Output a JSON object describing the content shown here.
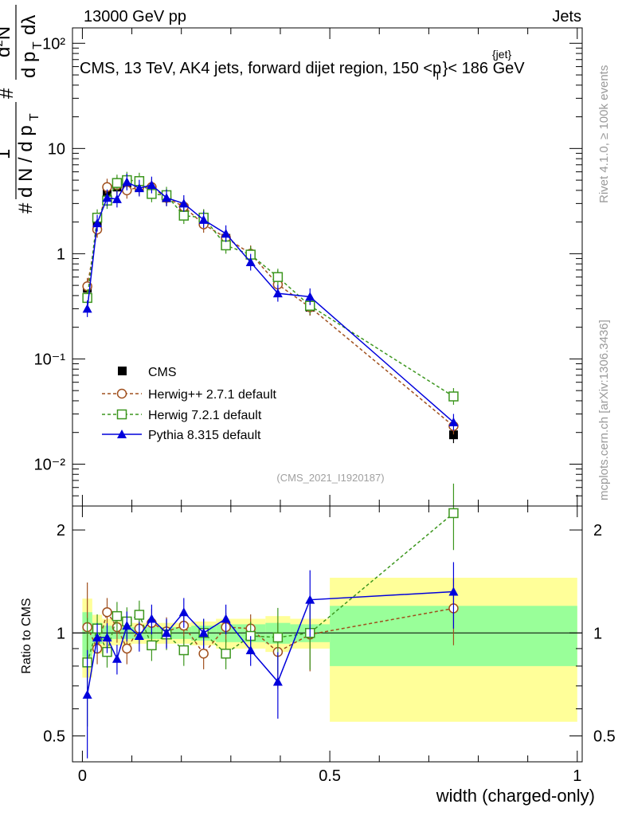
{
  "header": {
    "energy_label": "13000 GeV pp",
    "category_label": "Jets",
    "title": "CMS, 13 TeV, AK4 jets, forward dijet region, 150 <p",
    "title_sup": "{jet}",
    "title_sub": "T",
    "title_end": "}< 186 GeV",
    "analysis_id": "(CMS_2021_I1920187)"
  },
  "side_labels": {
    "rivet": "Rivet 4.1.0, ≥ 100k events",
    "mcplots": "mcplots.cern.ch [arXiv:1306.3436]"
  },
  "chart_data": {
    "type": "line",
    "x": [
      0.01,
      0.03,
      0.05,
      0.07,
      0.09,
      0.115,
      0.14,
      0.17,
      0.205,
      0.245,
      0.29,
      0.34,
      0.395,
      0.46,
      0.75
    ],
    "x_bin_edges": [
      0.0,
      0.02,
      0.04,
      0.06,
      0.08,
      0.1,
      0.13,
      0.15,
      0.19,
      0.22,
      0.27,
      0.31,
      0.37,
      0.42,
      0.5,
      1.0
    ],
    "xlabel": "width (charged-only)",
    "ylabel_main": "# 1/(d N / d p_T #) d^2N / (d p_T dλ)",
    "ylabel_ratio": "Ratio to CMS",
    "xlim": [
      -0.02,
      1.01
    ],
    "ylim_main": [
      0.004,
      140
    ],
    "ylim_ratio": [
      0.42,
      2.35
    ],
    "x_ticks": [
      "0",
      "0.5",
      "1"
    ],
    "y_ticks_main": [
      "10⁻²",
      "10⁻¹",
      "1",
      "10",
      "10²"
    ],
    "y_ticks_ratio": [
      "0.5",
      "1",
      "2"
    ],
    "legend_position": "middle-left",
    "series": [
      {
        "name": "CMS",
        "style": "data",
        "color": "#000000",
        "values": [
          0.47,
          2.0,
          3.7,
          4.3,
          4.7,
          4.3,
          4.1,
          3.4,
          2.7,
          2.2,
          1.4,
          0.98,
          0.58,
          0.31,
          0.019
        ]
      },
      {
        "name": "Herwig++ 2.7.1 default",
        "style": "dashed-circle",
        "color": "#a0501e",
        "values": [
          0.49,
          1.7,
          4.3,
          4.5,
          4.0,
          4.3,
          4.3,
          3.4,
          2.8,
          1.9,
          1.42,
          1.0,
          0.51,
          0.31,
          0.023
        ],
        "ratio": [
          1.04,
          0.9,
          1.15,
          1.04,
          0.9,
          1.03,
          1.07,
          1.01,
          1.05,
          0.87,
          1.04,
          1.03,
          0.88,
          0.99,
          1.18
        ]
      },
      {
        "name": "Herwig 7.2.1 default",
        "style": "dashed-square",
        "color": "#3c961e",
        "values": [
          0.38,
          2.2,
          3.2,
          4.7,
          5.0,
          4.9,
          3.7,
          3.6,
          2.3,
          2.2,
          1.2,
          0.98,
          0.6,
          0.32,
          0.044
        ],
        "ratio": [
          0.82,
          1.03,
          0.88,
          1.12,
          1.08,
          1.13,
          0.92,
          0.99,
          0.89,
          1.0,
          0.87,
          0.98,
          0.97,
          1.0,
          2.24
        ]
      },
      {
        "name": "Pythia 8.315 default",
        "style": "solid-triangle",
        "color": "#0000dc",
        "values": [
          0.3,
          1.95,
          3.4,
          3.3,
          4.8,
          4.2,
          4.5,
          3.4,
          3.0,
          2.1,
          1.55,
          0.83,
          0.42,
          0.39,
          0.025
        ],
        "ratio": [
          0.66,
          0.97,
          0.97,
          0.84,
          1.05,
          0.98,
          1.1,
          1.0,
          1.15,
          1.0,
          1.1,
          0.89,
          0.72,
          1.25,
          1.32
        ]
      }
    ],
    "uncertainty_bands": {
      "yellow": [
        0.26,
        0.13,
        0.1,
        0.08,
        0.08,
        0.07,
        0.08,
        0.07,
        0.07,
        0.08,
        0.1,
        0.1,
        0.12,
        0.1,
        0.45
      ],
      "green": [
        0.15,
        0.07,
        0.05,
        0.04,
        0.04,
        0.04,
        0.04,
        0.04,
        0.04,
        0.05,
        0.06,
        0.06,
        0.07,
        0.06,
        0.2
      ]
    },
    "colors": {
      "band_yellow": "#ffff99",
      "band_green": "#99ff99"
    }
  }
}
